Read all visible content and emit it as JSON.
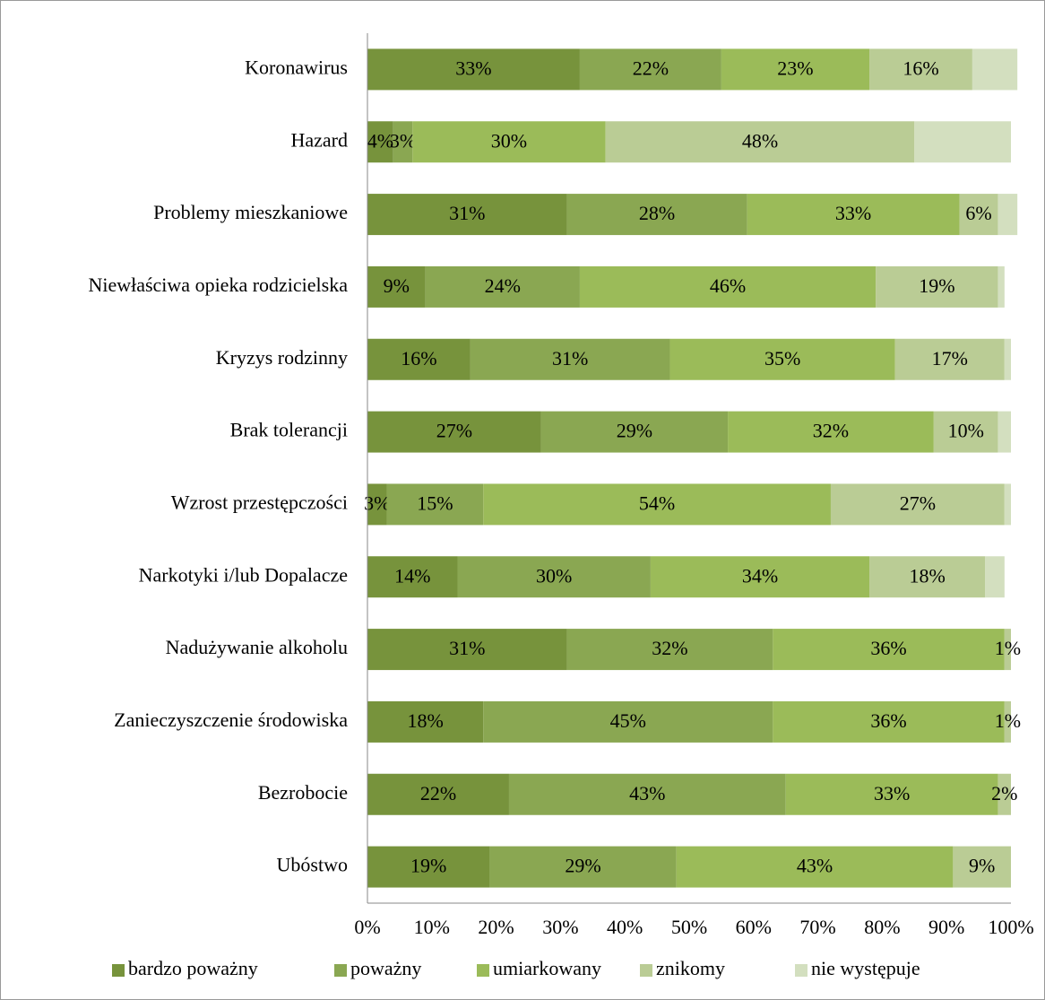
{
  "chart_data": {
    "type": "stacked-bar-horizontal",
    "categories": [
      "Koronawirus",
      "Hazard",
      "Problemy mieszkaniowe",
      "Niewłaściwa opieka rodzicielska",
      "Kryzys rodzinny",
      "Brak tolerancji",
      "Wzrost przestępczości",
      "Narkotyki i/lub Dopalacze",
      "Nadużywanie alkoholu",
      "Zanieczyszczenie środowiska",
      "Bezrobocie",
      "Ubóstwo"
    ],
    "series": [
      {
        "name": "bardzo poważny",
        "color": "#77933c",
        "values": [
          33,
          4,
          31,
          9,
          16,
          27,
          3,
          14,
          31,
          18,
          22,
          19
        ],
        "value_labels": [
          "33%",
          "4%",
          "31%",
          "9%",
          "16%",
          "27%",
          "3%",
          "14%",
          "31%",
          "18%",
          "22%",
          "19%"
        ]
      },
      {
        "name": "poważny",
        "color": "#8aa752",
        "values": [
          22,
          3,
          28,
          24,
          31,
          29,
          15,
          30,
          32,
          45,
          43,
          29
        ],
        "value_labels": [
          "22%",
          "3%",
          "28%",
          "24%",
          "31%",
          "29%",
          "15%",
          "30%",
          "32%",
          "45%",
          "43%",
          "29%"
        ]
      },
      {
        "name": "umiarkowany",
        "color": "#9bbb59",
        "values": [
          23,
          30,
          33,
          46,
          35,
          32,
          54,
          34,
          36,
          36,
          33,
          43
        ],
        "value_labels": [
          "23%",
          "30%",
          "33%",
          "46%",
          "35%",
          "32%",
          "54%",
          "34%",
          "36%",
          "36%",
          "33%",
          "43%"
        ]
      },
      {
        "name": "znikomy",
        "color": "#bacc95",
        "values": [
          16,
          48,
          6,
          19,
          17,
          10,
          27,
          18,
          1,
          1,
          2,
          9
        ],
        "value_labels": [
          "16%",
          "48%",
          "6%",
          "19%",
          "17%",
          "10%",
          "27%",
          "18%",
          "1%",
          "1%",
          "2%",
          "9%"
        ]
      },
      {
        "name": "nie występuje",
        "color": "#d3dfbf",
        "values": [
          7,
          15,
          3,
          1,
          1,
          2,
          1,
          3,
          0,
          0,
          0,
          0
        ],
        "value_labels": [
          null,
          null,
          null,
          null,
          null,
          null,
          null,
          null,
          null,
          null,
          null,
          null
        ]
      }
    ],
    "xlim": [
      0,
      100
    ],
    "xticks": [
      {
        "value": 0,
        "label": "0%"
      },
      {
        "value": 10,
        "label": "10%"
      },
      {
        "value": 20,
        "label": "20%"
      },
      {
        "value": 30,
        "label": "30%"
      },
      {
        "value": 40,
        "label": "40%"
      },
      {
        "value": 50,
        "label": "50%"
      },
      {
        "value": 60,
        "label": "60%"
      },
      {
        "value": 70,
        "label": "70%"
      },
      {
        "value": 80,
        "label": "80%"
      },
      {
        "value": 90,
        "label": "90%"
      },
      {
        "value": 100,
        "label": "100%"
      }
    ],
    "legend": "bottom"
  }
}
